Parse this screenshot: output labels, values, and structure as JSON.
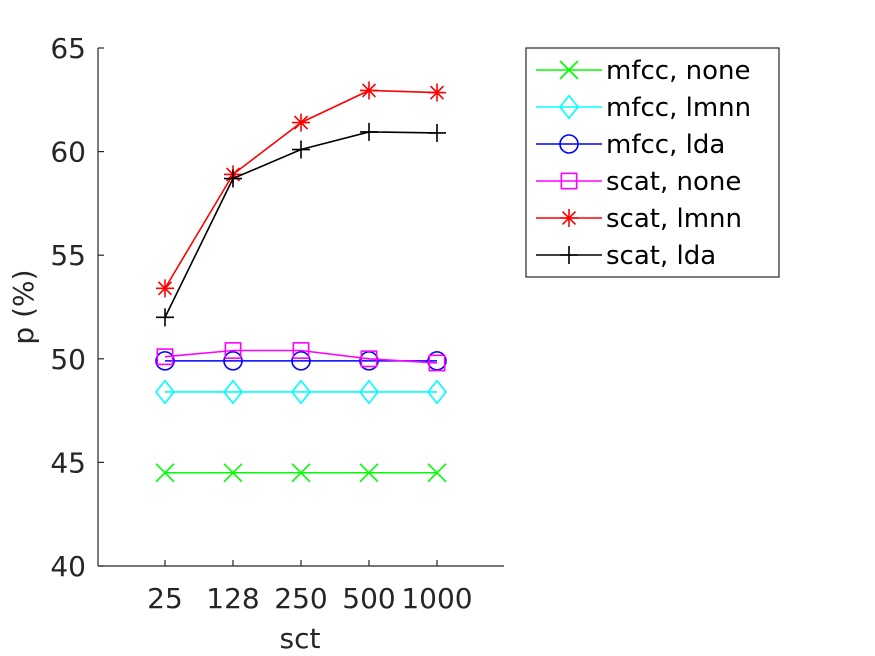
{
  "chart_data": {
    "type": "line",
    "title": "",
    "xlabel": "sct",
    "ylabel": "p (%)",
    "categories": [
      "25",
      "128",
      "250",
      "500",
      "1000"
    ],
    "ylim": [
      40,
      65
    ],
    "yticks": [
      "40",
      "45",
      "50",
      "55",
      "60",
      "65"
    ],
    "grid": false,
    "legend_position": "outside-right",
    "series": [
      {
        "name": "mfcc, none",
        "color": "#00ff00",
        "marker": "x",
        "values": [
          44.5,
          44.5,
          44.5,
          44.5,
          44.5
        ]
      },
      {
        "name": "mfcc, lmnn",
        "color": "#00ffff",
        "marker": "diamond",
        "values": [
          48.4,
          48.4,
          48.4,
          48.4,
          48.4
        ]
      },
      {
        "name": "mfcc, lda",
        "color": "#0000ff",
        "marker": "circle",
        "values": [
          49.9,
          49.9,
          49.9,
          49.9,
          49.9
        ]
      },
      {
        "name": "scat, none",
        "color": "#ff00ff",
        "marker": "square",
        "values": [
          50.1,
          50.4,
          50.4,
          50.0,
          49.8
        ]
      },
      {
        "name": "scat, lmnn",
        "color": "#ff0000",
        "marker": "asterisk",
        "values": [
          53.4,
          58.9,
          61.4,
          62.95,
          62.85
        ]
      },
      {
        "name": "scat, lda",
        "color": "#000000",
        "marker": "plus",
        "values": [
          52.0,
          58.7,
          60.1,
          60.95,
          60.9
        ]
      }
    ]
  }
}
